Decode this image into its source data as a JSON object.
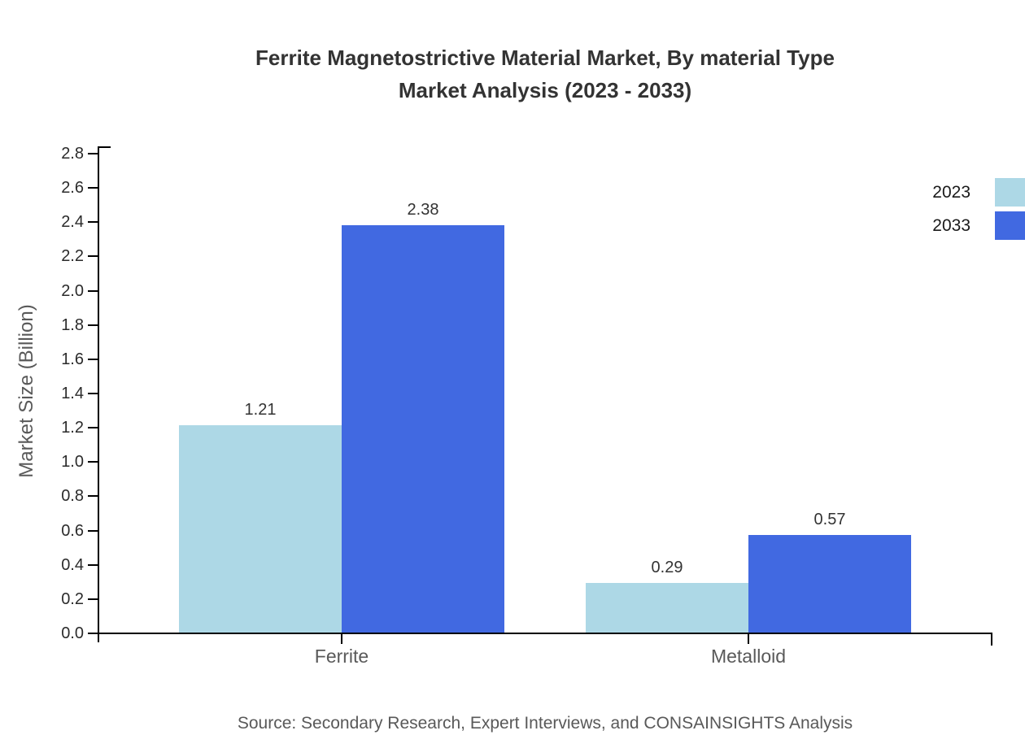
{
  "title": {
    "line1": "Ferrite Magnetostrictive Material Market, By material Type",
    "line2": "Market Analysis (2023 - 2033)"
  },
  "source_note": "Source: Secondary Research, Expert Interviews, and CONSAINSIGHTS Analysis",
  "colors": {
    "series_2023": "#ADD8E6",
    "series_2033": "#4169E1",
    "axis": "#000000",
    "title_text": "#333333",
    "muted_text": "#595959",
    "tick_text": "#2b2b2b"
  },
  "chart_data": {
    "type": "bar",
    "title": "Ferrite Magnetostrictive Material Market, By material Type Market Analysis (2023 - 2033)",
    "categories": [
      "Ferrite",
      "Metalloid"
    ],
    "series": [
      {
        "name": "2023",
        "color": "#ADD8E6",
        "values": [
          1.21,
          0.29
        ]
      },
      {
        "name": "2033",
        "color": "#4169E1",
        "values": [
          2.38,
          0.57
        ]
      }
    ],
    "xlabel": "",
    "ylabel": "Market Size (Billion)",
    "ylim": [
      0.0,
      2.8
    ],
    "y_tick_step": 0.2,
    "y_ticks": [
      "0.0",
      "0.2",
      "0.4",
      "0.6",
      "0.8",
      "1.0",
      "1.2",
      "1.4",
      "1.6",
      "1.8",
      "2.0",
      "2.2",
      "2.4",
      "2.6",
      "2.8"
    ],
    "grid": false,
    "legend_position": "upper right",
    "value_labels": [
      "1.21",
      "2.38",
      "0.29",
      "0.57"
    ]
  }
}
